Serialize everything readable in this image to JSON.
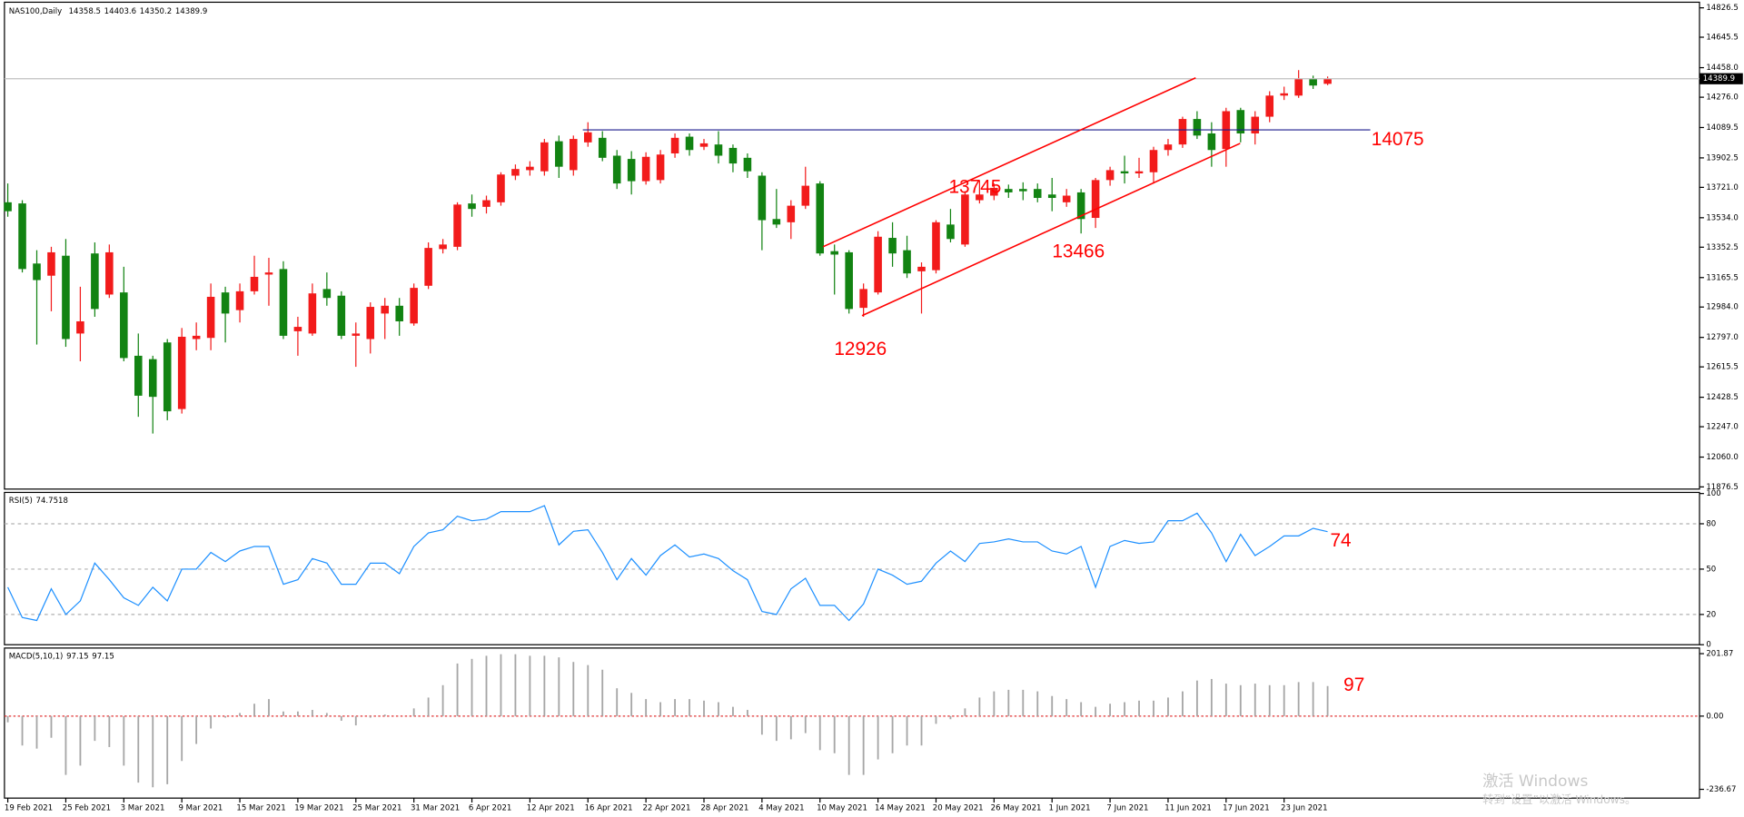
{
  "chart_data": [
    {
      "type": "candlestick",
      "title": "NAS100,Daily",
      "categories": [
        "19 Feb 2021",
        null,
        null,
        null,
        "25 Feb 2021",
        null,
        null,
        null,
        "3 Mar 2021",
        null,
        null,
        null,
        "9 Mar 2021",
        null,
        null,
        null,
        "15 Mar 2021",
        null,
        null,
        null,
        "19 Mar 2021",
        null,
        null,
        null,
        "25 Mar 2021",
        null,
        null,
        null,
        "31 Mar 2021",
        null,
        null,
        null,
        "6 Apr 2021",
        null,
        null,
        null,
        "12 Apr 2021",
        null,
        null,
        null,
        "16 Apr 2021",
        null,
        null,
        null,
        "22 Apr 2021",
        null,
        null,
        null,
        "28 Apr 2021",
        null,
        null,
        null,
        "4 May 2021",
        null,
        null,
        null,
        "10 May 2021",
        null,
        null,
        null,
        "14 May 2021",
        null,
        null,
        null,
        "20 May 2021",
        null,
        null,
        null,
        "26 May 2021",
        null,
        null,
        null,
        "1 Jun 2021",
        null,
        null,
        null,
        "7 Jun 2021",
        null,
        null,
        null,
        "11 Jun 2021",
        null,
        null,
        null,
        "17 Jun 2021",
        null,
        null,
        null,
        "23 Jun 2021",
        null,
        null,
        null
      ],
      "open": [
        13629,
        13622,
        13252,
        13177,
        13300,
        12821,
        13314,
        13061,
        13074,
        12684,
        12663,
        12766,
        12356,
        12787,
        12794,
        13074,
        12965,
        13081,
        13184,
        13218,
        12835,
        12821,
        13095,
        13054,
        12807,
        12787,
        12944,
        12992,
        12883,
        13115,
        13341,
        13355,
        13622,
        13601,
        13629,
        13793,
        13827,
        13820,
        14005,
        13827,
        13998,
        14026,
        13916,
        13896,
        13759,
        13766,
        13930,
        14033,
        13971,
        13985,
        13964,
        13903,
        13793,
        13526,
        13506,
        13608,
        13745,
        13328,
        13321,
        12979,
        13074,
        13410,
        13334,
        13204,
        13211,
        13492,
        13369,
        13642,
        13670,
        13711,
        13711,
        13711,
        13677,
        13629,
        13690,
        13533,
        13766,
        13820,
        13807,
        13814,
        13951,
        13985,
        14142,
        14053,
        13957,
        14197,
        14053,
        14156,
        14286,
        14286,
        14389,
        14358.5
      ],
      "high": [
        13745,
        13642,
        13334,
        13355,
        13403,
        13109,
        13382,
        13369,
        13232,
        12821,
        12684,
        12787,
        12855,
        12889,
        13129,
        13109,
        13129,
        13300,
        13287,
        13266,
        12924,
        13129,
        13197,
        13081,
        12889,
        13013,
        13040,
        13040,
        13129,
        13382,
        13403,
        13629,
        13677,
        13670,
        13814,
        13862,
        13882,
        14019,
        14040,
        14040,
        14122,
        14067,
        13951,
        13944,
        13937,
        13951,
        14053,
        14053,
        14019,
        14067,
        13985,
        13930,
        13814,
        13711,
        13642,
        13848,
        13759,
        13369,
        13334,
        13129,
        13451,
        13506,
        13423,
        13259,
        13519,
        13588,
        13697,
        13766,
        13745,
        13738,
        13752,
        13745,
        13779,
        13711,
        13711,
        13779,
        13848,
        13916,
        13903,
        13971,
        14019,
        14156,
        14190,
        14122,
        14211,
        14211,
        14190,
        14313,
        14341,
        14443,
        14409,
        14403.6
      ],
      "low": [
        13540,
        13197,
        12753,
        12958,
        12739,
        12650,
        12924,
        13040,
        12650,
        12308,
        12205,
        12287,
        12328,
        12718,
        12718,
        12766,
        12889,
        13061,
        12992,
        12787,
        12684,
        12807,
        12992,
        12787,
        12616,
        12698,
        12787,
        12807,
        12869,
        13095,
        13314,
        13334,
        13540,
        13560,
        13608,
        13766,
        13793,
        13793,
        13779,
        13793,
        13971,
        13882,
        13711,
        13677,
        13738,
        13745,
        13903,
        13916,
        13951,
        13868,
        13814,
        13779,
        13334,
        13471,
        13403,
        13588,
        13300,
        13061,
        12944,
        12924,
        13061,
        13232,
        13163,
        12944,
        13191,
        13382,
        13355,
        13622,
        13642,
        13656,
        13642,
        13629,
        13574,
        13601,
        13437,
        13471,
        13731,
        13745,
        13779,
        13745,
        13916,
        13964,
        14019,
        13848,
        13848,
        13998,
        13985,
        14122,
        14259,
        14272,
        14327,
        14350.2
      ],
      "close": [
        13574,
        13218,
        13150,
        13321,
        12787,
        12896,
        12972,
        13321,
        12670,
        12438,
        12431,
        12342,
        12801,
        12807,
        13047,
        12944,
        13081,
        13170,
        13197,
        12807,
        12862,
        13068,
        13040,
        12807,
        12821,
        12985,
        12992,
        12896,
        13102,
        13348,
        13369,
        13615,
        13588,
        13642,
        13800,
        13834,
        13848,
        13998,
        13848,
        14019,
        14060,
        13903,
        13745,
        13759,
        13909,
        13923,
        14026,
        13951,
        13992,
        13916,
        13868,
        13820,
        13519,
        13492,
        13608,
        13731,
        13314,
        13307,
        12972,
        13095,
        13417,
        13314,
        13191,
        13232,
        13506,
        13403,
        13677,
        13677,
        13718,
        13690,
        13697,
        13656,
        13656,
        13670,
        13526,
        13766,
        13827,
        13807,
        13820,
        13951,
        13985,
        14142,
        14040,
        13951,
        14190,
        14053,
        14156,
        14286,
        14300,
        14389,
        14348,
        14389.9
      ],
      "up_color": "#f21b1b",
      "down_color": "#128312",
      "ylim": [
        11863,
        14861
      ],
      "yticks": [
        11876.5,
        {
          "value": 12060,
          "label": "12060.0"
        },
        {
          "value": 12247,
          "label": "12247.0"
        },
        12428.5,
        12615.5,
        {
          "value": 12797,
          "label": "12797.0"
        },
        {
          "value": 12984,
          "label": "12984.0"
        },
        13165.5,
        13352.5,
        {
          "value": 13534,
          "label": "13534.0"
        },
        {
          "value": 13721,
          "label": "13721.0"
        },
        13902.5,
        14089.5,
        {
          "value": 14276,
          "label": "14276.0"
        },
        {
          "value": 14458,
          "label": "14458.0"
        },
        14645.5,
        14826.5
      ],
      "annotations": {
        "resistance": 14075,
        "channel_high": 13745,
        "channel_pullback": 13466,
        "channel_low": 12926
      }
    },
    {
      "type": "line",
      "title": "RSI(5)",
      "color": "#1e90ff",
      "values": [
        38,
        18,
        16,
        37,
        20,
        29,
        54,
        43,
        31,
        26,
        38,
        29,
        50,
        50,
        61,
        55,
        62,
        65,
        65,
        40,
        43,
        57,
        54,
        40,
        40,
        54,
        54,
        47,
        65,
        74,
        76,
        85,
        82,
        83,
        88,
        88,
        88,
        92,
        66,
        75,
        76,
        61,
        43,
        57,
        46,
        59,
        66,
        58,
        60,
        57,
        49,
        43,
        22,
        20,
        37,
        44,
        26,
        26,
        16,
        27,
        50,
        46,
        40,
        42,
        54,
        62,
        55,
        67,
        68,
        70,
        68,
        68,
        62,
        60,
        65,
        38,
        65,
        69,
        67,
        68,
        82,
        82,
        87,
        74,
        55,
        73,
        59,
        65,
        72,
        72,
        77,
        74.7518
      ],
      "ylim": [
        0,
        100
      ],
      "yticks": [
        0,
        20,
        50,
        80,
        100
      ],
      "annotation": 74
    },
    {
      "type": "bar",
      "title": "MACD(5,10,1)",
      "color": "#a6a6a6",
      "zero_color": "#e03030",
      "values": [
        -20,
        -95,
        -105,
        -70,
        -190,
        -160,
        -80,
        -100,
        -160,
        -215,
        -230,
        -220,
        -145,
        -90,
        -40,
        -5,
        10,
        40,
        55,
        15,
        15,
        20,
        10,
        -15,
        -30,
        -5,
        5,
        0,
        25,
        60,
        100,
        170,
        185,
        195,
        200,
        200,
        195,
        195,
        190,
        175,
        165,
        150,
        90,
        75,
        55,
        45,
        55,
        55,
        50,
        45,
        30,
        20,
        -60,
        -80,
        -75,
        -55,
        -110,
        -120,
        -190,
        -190,
        -140,
        -120,
        -95,
        -95,
        -25,
        -10,
        25,
        60,
        80,
        85,
        85,
        80,
        65,
        55,
        45,
        30,
        40,
        45,
        50,
        50,
        60,
        80,
        115,
        120,
        105,
        100,
        105,
        100,
        100,
        110,
        110,
        97.15
      ],
      "ylim": [
        -265,
        220
      ],
      "yticks": [
        -236.67,
        {
          "value": 0,
          "label": "0.00"
        },
        201.87
      ],
      "annotation": 97
    }
  ],
  "watermark": {
    "title": "激活 Windows",
    "subtitle": "转到“设置”以激活 Windows。"
  }
}
